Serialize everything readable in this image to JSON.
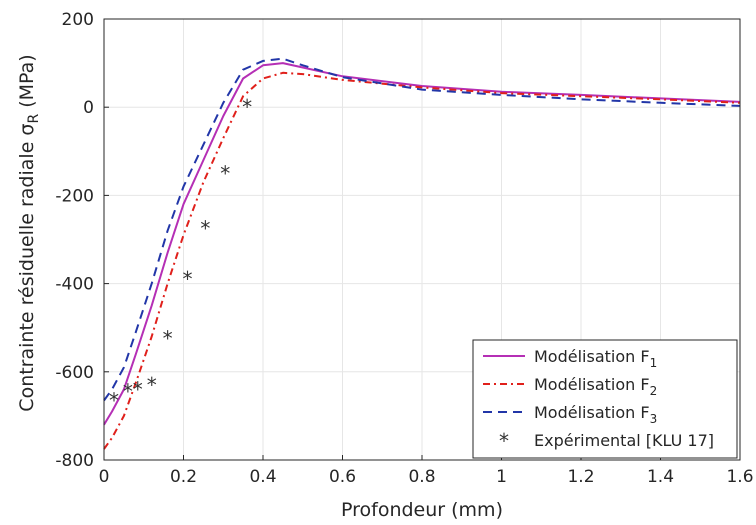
{
  "chart_data": {
    "type": "line",
    "title": "",
    "xlabel": "Profondeur (mm)",
    "ylabel": {
      "main": "Contrainte résiduelle radiale σ",
      "sub": "R",
      "unit": " (MPa)"
    },
    "xlim": [
      0,
      1.6
    ],
    "ylim": [
      -800,
      200
    ],
    "xticks": [
      "0",
      "0.2",
      "0.4",
      "0.6",
      "0.8",
      "1",
      "1.2",
      "1.4",
      "1.6"
    ],
    "yticks": [
      "-800",
      "-600",
      "-400",
      "-200",
      "0",
      "200"
    ],
    "grid": true,
    "legend_position": "bottom-right",
    "series": [
      {
        "name": "Modélisation F",
        "name_sub": "1",
        "color": "#b52fb5",
        "style": "solid",
        "x": [
          0,
          0.02,
          0.05,
          0.08,
          0.12,
          0.16,
          0.2,
          0.25,
          0.3,
          0.35,
          0.4,
          0.45,
          0.5,
          0.6,
          0.8,
          1.0,
          1.2,
          1.4,
          1.6
        ],
        "y": [
          -720,
          -690,
          -640,
          -560,
          -450,
          -330,
          -220,
          -120,
          -20,
          65,
          95,
          100,
          90,
          70,
          48,
          35,
          28,
          20,
          12
        ]
      },
      {
        "name": "Modélisation F",
        "name_sub": "2",
        "color": "#e0201b",
        "style": "dashdot",
        "x": [
          0,
          0.02,
          0.05,
          0.08,
          0.12,
          0.16,
          0.2,
          0.25,
          0.3,
          0.35,
          0.4,
          0.45,
          0.5,
          0.6,
          0.8,
          1.0,
          1.2,
          1.4,
          1.6
        ],
        "y": [
          -775,
          -750,
          -700,
          -625,
          -520,
          -400,
          -290,
          -170,
          -70,
          25,
          65,
          78,
          75,
          62,
          45,
          32,
          25,
          18,
          10
        ]
      },
      {
        "name": "Modélisation F",
        "name_sub": "3",
        "color": "#2236a8",
        "style": "dashed",
        "x": [
          0,
          0.02,
          0.05,
          0.08,
          0.12,
          0.16,
          0.2,
          0.25,
          0.3,
          0.35,
          0.4,
          0.45,
          0.5,
          0.6,
          0.8,
          1.0,
          1.2,
          1.4,
          1.6
        ],
        "y": [
          -665,
          -640,
          -590,
          -510,
          -400,
          -280,
          -180,
          -85,
          10,
          85,
          105,
          110,
          95,
          68,
          40,
          28,
          18,
          10,
          3
        ]
      },
      {
        "name": "Expérimental [KLU 17]",
        "color": "#333333",
        "style": "markers",
        "x": [
          0.025,
          0.06,
          0.085,
          0.12,
          0.16,
          0.21,
          0.255,
          0.305,
          0.36
        ],
        "y": [
          -665,
          -645,
          -640,
          -630,
          -525,
          -390,
          -275,
          -150,
          0
        ]
      }
    ]
  }
}
